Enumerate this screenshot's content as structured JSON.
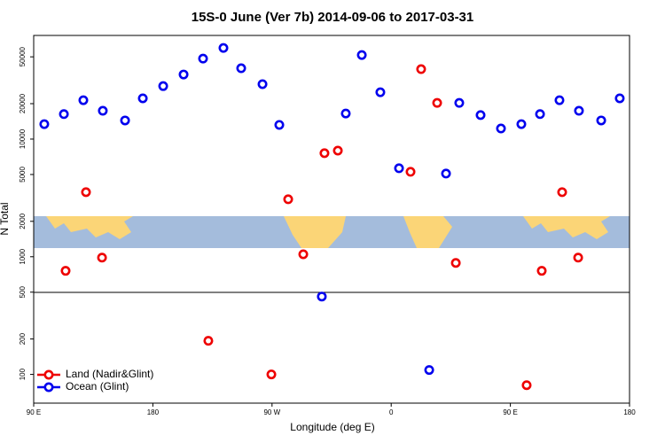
{
  "chart_data": {
    "type": "scatter",
    "title": "15S-0 June (Ver 7b)   2014-09-06 to 2017-03-31",
    "x_label": "Longitude (deg E)",
    "y_label": "N Total",
    "log_y": true,
    "xlim": [
      90,
      540
    ],
    "ylim": [
      57,
      76000
    ],
    "xticks": [
      {
        "value": 90,
        "label": "90 E"
      },
      180,
      {
        "value": 270,
        "label": "90 W"
      },
      {
        "value": 360,
        "label": "0"
      },
      {
        "value": 450,
        "label": "90 E"
      },
      {
        "value": 540,
        "label": "180"
      }
    ],
    "yticks": [
      100,
      200,
      500,
      1000,
      2000,
      5000,
      10000,
      20000,
      50000
    ],
    "legend": "bottom-left",
    "series": [
      {
        "name": "Land (Nadir&Glint)",
        "color": "#ee0000",
        "x": [
          114.1,
          129.5,
          141.6,
          221.9,
          269.5,
          282.2,
          293.6,
          309.6,
          319.7,
          374.6,
          382.6,
          394.7,
          408.8,
          462.3,
          473.7,
          489.1,
          501.2
        ],
        "values": [
          759,
          3540,
          983,
          193,
          100,
          3080,
          1050,
          7590,
          7980,
          5270,
          39300,
          20300,
          886,
          81,
          759,
          3540,
          983
        ]
      },
      {
        "name": "Ocean (Glint)",
        "color": "#0000ee",
        "x": [
          98,
          112.8,
          127.5,
          142.2,
          159,
          172.4,
          187.8,
          203.2,
          217.9,
          233.3,
          246.7,
          262.8,
          275.5,
          307.6,
          325.7,
          337.8,
          351.8,
          365.9,
          388.7,
          401.4,
          411.4,
          427.5,
          442.9,
          458.3,
          472.4,
          487.1,
          501.8,
          518.6,
          532.6
        ],
        "values": [
          13400,
          16300,
          21400,
          17400,
          14400,
          22200,
          28200,
          35400,
          48300,
          59500,
          40000,
          29300,
          13200,
          459,
          16500,
          51800,
          25000,
          5650,
          109,
          5090,
          20300,
          16000,
          12300,
          13400,
          16300,
          21400,
          17400,
          14400,
          22200
        ]
      }
    ]
  }
}
